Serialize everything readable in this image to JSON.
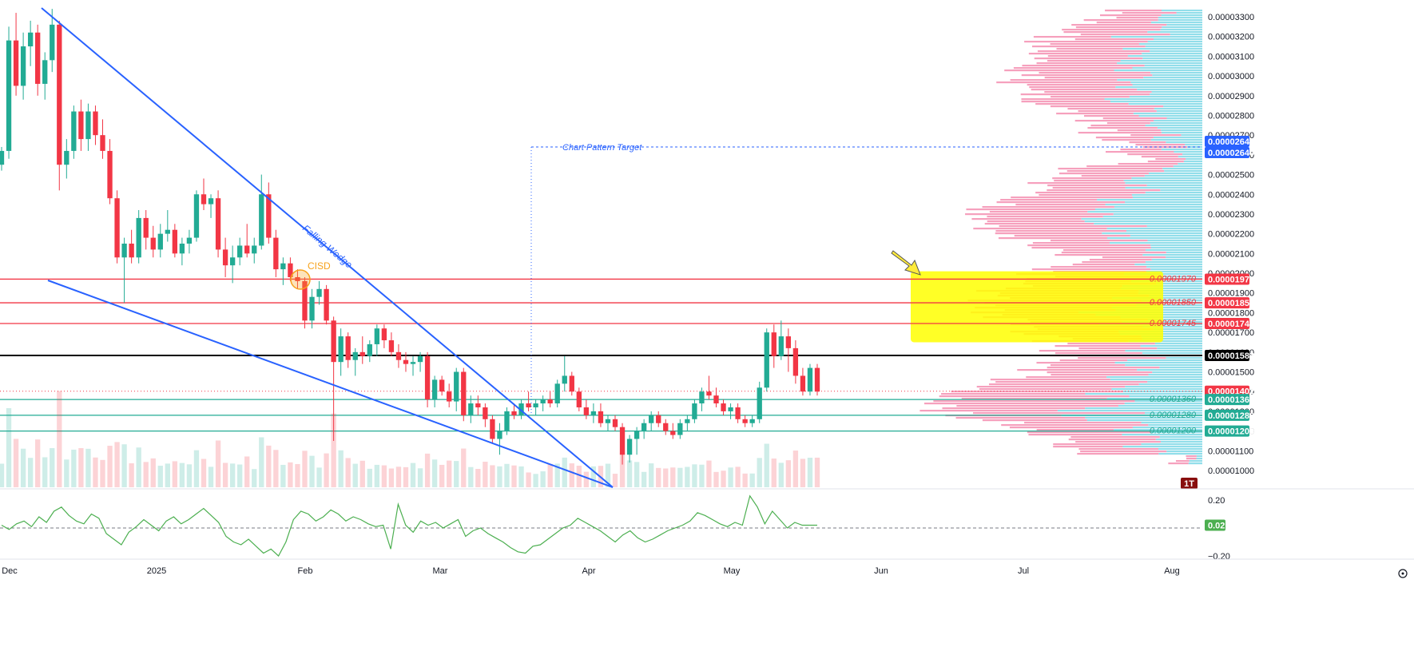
{
  "chart_data": {
    "type": "candlestick",
    "price_axis": {
      "min": 9.5e-06,
      "max": 3.35e-05,
      "ticks": [
        "0.00001000",
        "0.00001100",
        "0.00001200",
        "0.00001300",
        "0.00001400",
        "0.00001500",
        "0.00001600",
        "0.00001700",
        "0.00001800",
        "0.00001900",
        "0.00002000",
        "0.00002100",
        "0.00002200",
        "0.00002300",
        "0.00002400",
        "0.00002500",
        "0.00002600",
        "0.00002700",
        "0.00002800",
        "0.00002900",
        "0.00003000",
        "0.00003100",
        "0.00003200",
        "0.00003300"
      ]
    },
    "time_axis": {
      "labels": [
        "Dec",
        "2025",
        "Feb",
        "Mar",
        "Apr",
        "May",
        "Jun",
        "Jul",
        "Aug"
      ]
    },
    "price_tags": [
      {
        "value": "0.00002640",
        "price": 2.64e-05,
        "color": "#2962ff"
      },
      {
        "value": "0.00002640",
        "price": 2.64e-05,
        "color": "#2962ff"
      },
      {
        "value": "0.00001970",
        "price": 1.97e-05,
        "color": "#f23645"
      },
      {
        "value": "0.00001850",
        "price": 1.85e-05,
        "color": "#f23645"
      },
      {
        "value": "0.00001745",
        "price": 1.745e-05,
        "color": "#f23645"
      },
      {
        "value": "0.00001583",
        "price": 1.583e-05,
        "color": "#000000"
      },
      {
        "value": "0.00001402",
        "price": 1.402e-05,
        "color": "#f23645"
      },
      {
        "value": "0.00001360",
        "price": 1.36e-05,
        "color": "#22ab94"
      },
      {
        "value": "0.00001280",
        "price": 1.28e-05,
        "color": "#22ab94"
      },
      {
        "value": "0.00001200",
        "price": 1.2e-05,
        "color": "#22ab94"
      }
    ],
    "levels": [
      {
        "label": "0.00001970",
        "price": 1.97e-05,
        "color": "#f23645"
      },
      {
        "label": "0.00001850",
        "price": 1.85e-05,
        "color": "#f23645"
      },
      {
        "label": "0.00001745",
        "price": 1.745e-05,
        "color": "#f23645"
      },
      {
        "label": "",
        "price": 1.583e-05,
        "color": "#000000"
      },
      {
        "label": "0.00001360",
        "price": 1.36e-05,
        "color": "#22ab94"
      },
      {
        "label": "0.00001280",
        "price": 1.28e-05,
        "color": "#22ab94"
      },
      {
        "label": "0.00001200",
        "price": 1.2e-05,
        "color": "#22ab94"
      }
    ],
    "annotations": {
      "pattern_target": "Chart Pattern Target",
      "wedge": "Falling Wedge",
      "cisd": "CISD",
      "interval_badge": "1T"
    },
    "oscillator": {
      "ticks": [
        "0.20",
        "−0.20"
      ],
      "current": "0.02",
      "range": [
        -0.26,
        0.26
      ]
    },
    "colors": {
      "up": "#22ab94",
      "down": "#f23645",
      "wedge": "#2962ff",
      "zone": "#ffff00",
      "profile_up": "#7fd8e6",
      "profile_down": "#f48fb1",
      "oscillator": "#4caf50"
    },
    "candles": [
      [
        2.55e-05,
        2.64e-05,
        2.52e-05,
        2.62e-05
      ],
      [
        2.62e-05,
        3.25e-05,
        2.58e-05,
        3.18e-05
      ],
      [
        3.18e-05,
        3.32e-05,
        2.9e-05,
        2.95e-05
      ],
      [
        2.95e-05,
        3.22e-05,
        2.88e-05,
        3.15e-05
      ],
      [
        3.15e-05,
        3.28e-05,
        3.05e-05,
        3.22e-05
      ],
      [
        3.22e-05,
        3.26e-05,
        2.9e-05,
        2.96e-05
      ],
      [
        2.96e-05,
        3.12e-05,
        2.88e-05,
        3.08e-05
      ],
      [
        3.08e-05,
        3.34e-05,
        3.02e-05,
        3.26e-05
      ],
      [
        3.26e-05,
        3.28e-05,
        2.42e-05,
        2.55e-05
      ],
      [
        2.55e-05,
        2.68e-05,
        2.48e-05,
        2.62e-05
      ],
      [
        2.62e-05,
        2.85e-05,
        2.58e-05,
        2.82e-05
      ],
      [
        2.82e-05,
        2.88e-05,
        2.62e-05,
        2.68e-05
      ],
      [
        2.68e-05,
        2.86e-05,
        2.62e-05,
        2.82e-05
      ],
      [
        2.82e-05,
        2.85e-05,
        2.65e-05,
        2.7e-05
      ],
      [
        2.7e-05,
        2.78e-05,
        2.58e-05,
        2.62e-05
      ],
      [
        2.62e-05,
        2.68e-05,
        2.35e-05,
        2.38e-05
      ],
      [
        2.38e-05,
        2.42e-05,
        2.05e-05,
        2.08e-05
      ],
      [
        2.08e-05,
        2.18e-05,
        1.85e-05,
        2.15e-05
      ],
      [
        2.15e-05,
        2.22e-05,
        2.05e-05,
        2.08e-05
      ],
      [
        2.08e-05,
        2.32e-05,
        2.05e-05,
        2.28e-05
      ],
      [
        2.28e-05,
        2.32e-05,
        2.12e-05,
        2.18e-05
      ],
      [
        2.18e-05,
        2.24e-05,
        2.08e-05,
        2.12e-05
      ],
      [
        2.12e-05,
        2.25e-05,
        2.08e-05,
        2.2e-05
      ],
      [
        2.2e-05,
        2.32e-05,
        2.16e-05,
        2.22e-05
      ],
      [
        2.22e-05,
        2.25e-05,
        2.08e-05,
        2.1e-05
      ],
      [
        2.1e-05,
        2.18e-05,
        2.04e-05,
        2.15e-05
      ],
      [
        2.15e-05,
        2.22e-05,
        2.1e-05,
        2.18e-05
      ],
      [
        2.18e-05,
        2.42e-05,
        2.16e-05,
        2.4e-05
      ],
      [
        2.4e-05,
        2.48e-05,
        2.32e-05,
        2.35e-05
      ],
      [
        2.35e-05,
        2.4e-05,
        2.28e-05,
        2.38e-05
      ],
      [
        2.38e-05,
        2.42e-05,
        2.08e-05,
        2.12e-05
      ],
      [
        2.12e-05,
        2.18e-05,
        1.98e-05,
        2.04e-05
      ],
      [
        2.04e-05,
        2.14e-05,
        1.95e-05,
        2.08e-05
      ],
      [
        2.08e-05,
        2.18e-05,
        2.04e-05,
        2.14e-05
      ],
      [
        2.14e-05,
        2.25e-05,
        2.08e-05,
        2.1e-05
      ],
      [
        2.1e-05,
        2.18e-05,
        2.05e-05,
        2.14e-05
      ],
      [
        2.14e-05,
        2.5e-05,
        2.12e-05,
        2.4e-05
      ],
      [
        2.4e-05,
        2.46e-05,
        2.15e-05,
        2.18e-05
      ],
      [
        2.18e-05,
        2.22e-05,
        1.98e-05,
        2.02e-05
      ],
      [
        2.02e-05,
        2.08e-05,
        1.94e-05,
        2.05e-05
      ],
      [
        2.05e-05,
        2.08e-05,
        1.96e-05,
        1.98e-05
      ],
      [
        1.98e-05,
        2.02e-05,
        1.92e-05,
        1.96e-05
      ],
      [
        1.96e-05,
        1.98e-05,
        1.72e-05,
        1.76e-05
      ],
      [
        1.76e-05,
        1.92e-05,
        1.72e-05,
        1.88e-05
      ],
      [
        1.88e-05,
        1.96e-05,
        1.84e-05,
        1.92e-05
      ],
      [
        1.92e-05,
        1.94e-05,
        1.74e-05,
        1.76e-05
      ],
      [
        1.76e-05,
        1.78e-05,
        1.15e-05,
        1.55e-05
      ],
      [
        1.55e-05,
        1.72e-05,
        1.48e-05,
        1.68e-05
      ],
      [
        1.68e-05,
        1.7e-05,
        1.52e-05,
        1.56e-05
      ],
      [
        1.56e-05,
        1.62e-05,
        1.48e-05,
        1.6e-05
      ],
      [
        1.6e-05,
        1.68e-05,
        1.54e-05,
        1.58e-05
      ],
      [
        1.58e-05,
        1.66e-05,
        1.55e-05,
        1.64e-05
      ],
      [
        1.64e-05,
        1.74e-05,
        1.58e-05,
        1.72e-05
      ],
      [
        1.72e-05,
        1.74e-05,
        1.62e-05,
        1.66e-05
      ],
      [
        1.66e-05,
        1.7e-05,
        1.58e-05,
        1.6e-05
      ],
      [
        1.6e-05,
        1.64e-05,
        1.52e-05,
        1.56e-05
      ],
      [
        1.56e-05,
        1.6e-05,
        1.5e-05,
        1.54e-05
      ],
      [
        1.54e-05,
        1.58e-05,
        1.48e-05,
        1.55e-05
      ],
      [
        1.55e-05,
        1.6e-05,
        1.5e-05,
        1.58e-05
      ],
      [
        1.58e-05,
        1.6e-05,
        1.32e-05,
        1.36e-05
      ],
      [
        1.36e-05,
        1.48e-05,
        1.32e-05,
        1.46e-05
      ],
      [
        1.46e-05,
        1.48e-05,
        1.38e-05,
        1.4e-05
      ],
      [
        1.4e-05,
        1.44e-05,
        1.32e-05,
        1.35e-05
      ],
      [
        1.35e-05,
        1.52e-05,
        1.3e-05,
        1.5e-05
      ],
      [
        1.5e-05,
        1.52e-05,
        1.25e-05,
        1.28e-05
      ],
      [
        1.28e-05,
        1.38e-05,
        1.24e-05,
        1.34e-05
      ],
      [
        1.34e-05,
        1.38e-05,
        1.28e-05,
        1.32e-05
      ],
      [
        1.32e-05,
        1.34e-05,
        1.22e-05,
        1.26e-05
      ],
      [
        1.26e-05,
        1.28e-05,
        1.14e-05,
        1.16e-05
      ],
      [
        1.16e-05,
        1.24e-05,
        1.08e-05,
        1.2e-05
      ],
      [
        1.2e-05,
        1.32e-05,
        1.18e-05,
        1.3e-05
      ],
      [
        1.3e-05,
        1.34e-05,
        1.26e-05,
        1.28e-05
      ],
      [
        1.28e-05,
        1.36e-05,
        1.26e-05,
        1.34e-05
      ],
      [
        1.34e-05,
        1.4e-05,
        1.3e-05,
        1.32e-05
      ],
      [
        1.32e-05,
        1.36e-05,
        1.28e-05,
        1.34e-05
      ],
      [
        1.34e-05,
        1.38e-05,
        1.3e-05,
        1.36e-05
      ],
      [
        1.36e-05,
        1.4e-05,
        1.32e-05,
        1.34e-05
      ],
      [
        1.34e-05,
        1.46e-05,
        1.32e-05,
        1.44e-05
      ],
      [
        1.44e-05,
        1.58e-05,
        1.4e-05,
        1.48e-05
      ],
      [
        1.48e-05,
        1.5e-05,
        1.38e-05,
        1.4e-05
      ],
      [
        1.4e-05,
        1.42e-05,
        1.3e-05,
        1.32e-05
      ],
      [
        1.32e-05,
        1.36e-05,
        1.26e-05,
        1.28e-05
      ],
      [
        1.28e-05,
        1.34e-05,
        1.24e-05,
        1.3e-05
      ],
      [
        1.3e-05,
        1.34e-05,
        1.22e-05,
        1.24e-05
      ],
      [
        1.24e-05,
        1.28e-05,
        1.2e-05,
        1.26e-05
      ],
      [
        1.26e-05,
        1.28e-05,
        1.2e-05,
        1.22e-05
      ],
      [
        1.22e-05,
        1.24e-05,
        1.03e-05,
        1.08e-05
      ],
      [
        1.08e-05,
        1.18e-05,
        1.04e-05,
        1.16e-05
      ],
      [
        1.16e-05,
        1.22e-05,
        1.08e-05,
        1.2e-05
      ],
      [
        1.2e-05,
        1.26e-05,
        1.16e-05,
        1.24e-05
      ],
      [
        1.24e-05,
        1.3e-05,
        1.2e-05,
        1.28e-05
      ],
      [
        1.28e-05,
        1.3e-05,
        1.22e-05,
        1.24e-05
      ],
      [
        1.24e-05,
        1.26e-05,
        1.18e-05,
        1.2e-05
      ],
      [
        1.2e-05,
        1.24e-05,
        1.16e-05,
        1.18e-05
      ],
      [
        1.18e-05,
        1.26e-05,
        1.16e-05,
        1.24e-05
      ],
      [
        1.24e-05,
        1.28e-05,
        1.2e-05,
        1.26e-05
      ],
      [
        1.26e-05,
        1.36e-05,
        1.24e-05,
        1.34e-05
      ],
      [
        1.34e-05,
        1.42e-05,
        1.3e-05,
        1.4e-05
      ],
      [
        1.4e-05,
        1.48e-05,
        1.36e-05,
        1.38e-05
      ],
      [
        1.38e-05,
        1.42e-05,
        1.32e-05,
        1.34e-05
      ],
      [
        1.34e-05,
        1.36e-05,
        1.28e-05,
        1.3e-05
      ],
      [
        1.3e-05,
        1.34e-05,
        1.26e-05,
        1.32e-05
      ],
      [
        1.32e-05,
        1.34e-05,
        1.24e-05,
        1.26e-05
      ],
      [
        1.26e-05,
        1.28e-05,
        1.22e-05,
        1.24e-05
      ],
      [
        1.24e-05,
        1.28e-05,
        1.22e-05,
        1.26e-05
      ],
      [
        1.26e-05,
        1.45e-05,
        1.24e-05,
        1.42e-05
      ],
      [
        1.42e-05,
        1.72e-05,
        1.4e-05,
        1.7e-05
      ],
      [
        1.7e-05,
        1.74e-05,
        1.52e-05,
        1.58e-05
      ],
      [
        1.58e-05,
        1.76e-05,
        1.56e-05,
        1.68e-05
      ],
      [
        1.68e-05,
        1.72e-05,
        1.5e-05,
        1.62e-05
      ],
      [
        1.62e-05,
        1.66e-05,
        1.44e-05,
        1.48e-05
      ],
      [
        1.48e-05,
        1.52e-05,
        1.38e-05,
        1.4e-05
      ],
      [
        1.4e-05,
        1.54e-05,
        1.38e-05,
        1.52e-05
      ],
      [
        1.52e-05,
        1.54e-05,
        1.38e-05,
        1.4e-05
      ]
    ],
    "oscillator_values": [
      0.02,
      -0.01,
      0.03,
      0.05,
      0.01,
      0.08,
      0.04,
      0.12,
      0.15,
      0.09,
      0.05,
      0.03,
      0.1,
      0.07,
      -0.04,
      -0.08,
      -0.12,
      -0.03,
      0.01,
      0.06,
      0.02,
      -0.02,
      0.05,
      0.08,
      0.03,
      0.06,
      0.1,
      0.14,
      0.09,
      0.04,
      -0.06,
      -0.1,
      -0.12,
      -0.08,
      -0.13,
      -0.18,
      -0.15,
      -0.2,
      -0.1,
      0.06,
      0.12,
      0.1,
      0.05,
      0.08,
      0.13,
      0.1,
      0.05,
      0.08,
      0.06,
      0.03,
      0.01,
      0.02,
      -0.15,
      0.17,
      0.02,
      -0.03,
      0.05,
      0.02,
      0.04,
      0.0,
      0.03,
      0.06,
      -0.06,
      -0.02,
      0.0,
      -0.04,
      -0.07,
      -0.1,
      -0.14,
      -0.17,
      -0.18,
      -0.13,
      -0.12,
      -0.08,
      -0.04,
      0.0,
      0.02,
      0.07,
      0.04,
      0.01,
      -0.02,
      -0.06,
      -0.1,
      -0.05,
      -0.02,
      -0.07,
      -0.1,
      -0.08,
      -0.05,
      -0.02,
      0.0,
      0.02,
      0.05,
      0.11,
      0.09,
      0.06,
      0.03,
      0.01,
      0.04,
      0.02,
      0.23,
      0.15,
      0.03,
      0.12,
      0.06,
      0.0,
      0.04,
      0.02,
      0.02,
      0.02
    ]
  }
}
